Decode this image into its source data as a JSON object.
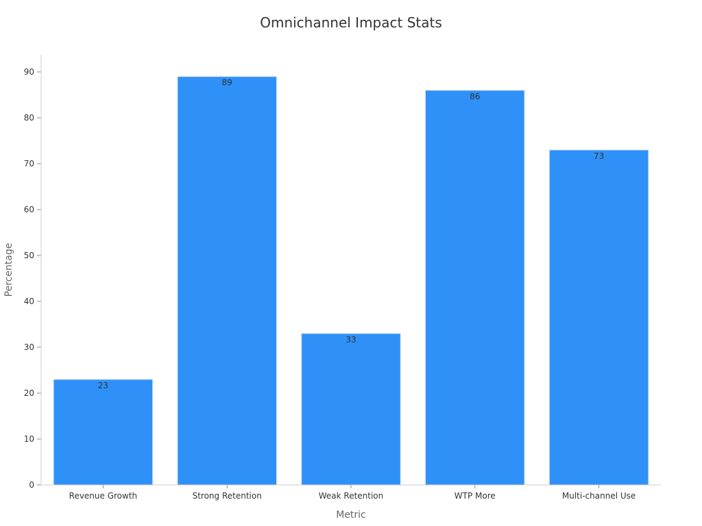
{
  "chart_data": {
    "type": "bar",
    "title": "Omnichannel Impact Stats",
    "xlabel": "Metric",
    "ylabel": "Percentage",
    "categories": [
      "Revenue Growth",
      "Strong Retention",
      "Weak Retention",
      "WTP More",
      "Multi-channel Use"
    ],
    "values": [
      23,
      89,
      33,
      86,
      73
    ],
    "ylim": [
      0,
      90
    ],
    "yticks": [
      0,
      10,
      20,
      30,
      40,
      50,
      60,
      70,
      80,
      90
    ],
    "grid": false,
    "legend": "none",
    "bar_color": "#2f91f8"
  }
}
